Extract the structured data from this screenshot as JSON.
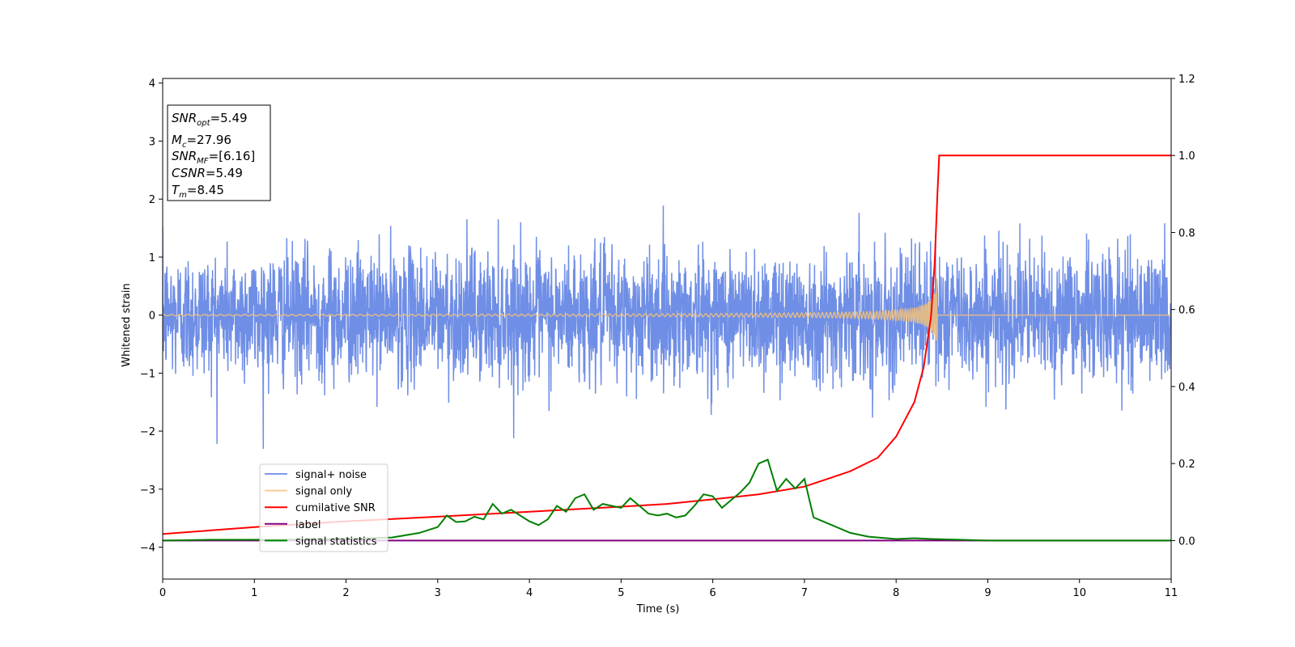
{
  "chart_data": {
    "type": "line",
    "xlabel": "Time (s)",
    "ylabel": "Whitened strain",
    "xlim": [
      0,
      11
    ],
    "ylim_left": [
      -4.55,
      4.08
    ],
    "ylim_right": [
      -0.1,
      1.2
    ],
    "x_ticks": [
      "0",
      "1",
      "2",
      "3",
      "4",
      "5",
      "6",
      "7",
      "8",
      "9",
      "10",
      "11"
    ],
    "y_ticks_left": [
      "4",
      "3",
      "2",
      "1",
      "0",
      "−1",
      "−2",
      "−3",
      "−4"
    ],
    "y_ticks_right": [
      "1.2",
      "1.0",
      "0.8",
      "0.6",
      "0.4",
      "0.2",
      "0.0"
    ],
    "colors": {
      "noise": "#6f8ee6",
      "signal": "#f2c27a",
      "csnr": "#ff0000",
      "label": "#800080",
      "stats": "#008000"
    },
    "legend_position": "lower-left",
    "legend": [
      {
        "key": "noise",
        "text": "signal+ noise"
      },
      {
        "key": "signal",
        "text": "signal only"
      },
      {
        "key": "csnr",
        "text": "cumilative SNR"
      },
      {
        "key": "label",
        "text": "label"
      },
      {
        "key": "stats",
        "text": "signal statistics"
      }
    ],
    "annotations": [
      {
        "sym": "SNR",
        "sub": "opt",
        "value": "=5.49"
      },
      {
        "sym": "M",
        "sub": "c",
        "value": "=27.96"
      },
      {
        "sym": "SNR",
        "sub": "MF",
        "value": "=[6.16]"
      },
      {
        "sym": "CSNR",
        "sub": "",
        "value": "=5.49"
      },
      {
        "sym": "T",
        "sub": "m",
        "value": "=8.45"
      }
    ],
    "series": [
      {
        "key": "csnr",
        "name": "cumilative SNR",
        "axis": "right",
        "x": [
          0,
          1,
          2,
          3,
          4,
          5,
          5.5,
          6,
          6.5,
          7,
          7.5,
          7.8,
          8.0,
          8.2,
          8.3,
          8.38,
          8.42,
          8.45,
          8.47,
          11
        ],
        "y": [
          0.017,
          0.035,
          0.05,
          0.062,
          0.075,
          0.088,
          0.095,
          0.107,
          0.12,
          0.14,
          0.18,
          0.215,
          0.27,
          0.36,
          0.45,
          0.58,
          0.72,
          0.9,
          1.0,
          1.0
        ]
      },
      {
        "key": "label",
        "name": "label",
        "axis": "right",
        "x": [
          0,
          11
        ],
        "y": [
          0.0,
          0.0
        ]
      },
      {
        "key": "stats",
        "name": "signal statistics",
        "axis": "right",
        "x": [
          0,
          0.5,
          1,
          1.5,
          2,
          2.5,
          2.8,
          3.0,
          3.1,
          3.2,
          3.3,
          3.4,
          3.5,
          3.6,
          3.7,
          3.8,
          4.0,
          4.1,
          4.2,
          4.3,
          4.4,
          4.5,
          4.6,
          4.7,
          4.8,
          4.9,
          5.0,
          5.1,
          5.2,
          5.3,
          5.4,
          5.5,
          5.6,
          5.7,
          5.8,
          5.9,
          6.0,
          6.1,
          6.2,
          6.3,
          6.4,
          6.5,
          6.6,
          6.7,
          6.8,
          6.9,
          7.0,
          7.1,
          7.2,
          7.3,
          7.5,
          7.7,
          8.0,
          8.2,
          8.4,
          8.7,
          9.0,
          10.0,
          11.0
        ],
        "y": [
          0.0,
          0.002,
          0.002,
          0.003,
          0.005,
          0.008,
          0.02,
          0.035,
          0.065,
          0.048,
          0.05,
          0.062,
          0.055,
          0.095,
          0.07,
          0.08,
          0.05,
          0.04,
          0.055,
          0.09,
          0.075,
          0.11,
          0.12,
          0.08,
          0.095,
          0.09,
          0.085,
          0.11,
          0.09,
          0.07,
          0.065,
          0.07,
          0.06,
          0.065,
          0.09,
          0.12,
          0.115,
          0.085,
          0.105,
          0.125,
          0.15,
          0.2,
          0.21,
          0.13,
          0.16,
          0.135,
          0.16,
          0.06,
          0.05,
          0.04,
          0.02,
          0.01,
          0.004,
          0.006,
          0.004,
          0.002,
          0.0,
          0.0,
          0.0
        ]
      },
      {
        "key": "signal",
        "name": "signal only",
        "axis": "left",
        "description_points": {
          "t_merger": 8.45,
          "peak_amplitude": 0.8
        }
      },
      {
        "key": "noise",
        "name": "signal+ noise",
        "axis": "left",
        "noise_sigma": 0.55,
        "x_range": [
          0,
          11
        ]
      }
    ]
  }
}
